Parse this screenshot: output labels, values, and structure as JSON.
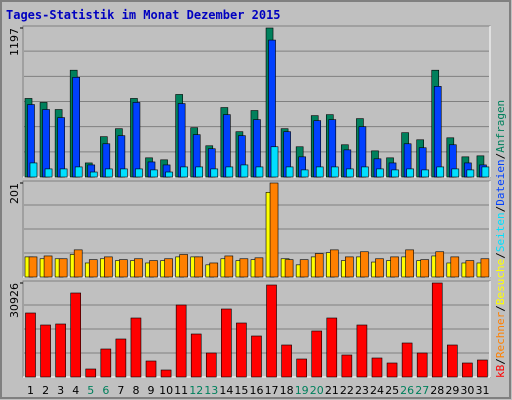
{
  "chart_data": {
    "type": "bar",
    "title": "Tages-Statistik im Monat Dezember 2015",
    "categories": [
      "1",
      "2",
      "3",
      "4",
      "5",
      "6",
      "7",
      "8",
      "9",
      "10",
      "11",
      "12",
      "13",
      "14",
      "15",
      "16",
      "17",
      "18",
      "19",
      "20",
      "21",
      "22",
      "23",
      "24",
      "25",
      "26",
      "27",
      "28",
      "29",
      "30",
      "31"
    ],
    "category_colors": [
      "#000000",
      "#000000",
      "#000000",
      "#000000",
      "#00805c",
      "#00805c",
      "#000000",
      "#000000",
      "#000000",
      "#000000",
      "#000000",
      "#00805c",
      "#00805c",
      "#000000",
      "#000000",
      "#000000",
      "#000000",
      "#000000",
      "#00805c",
      "#00805c",
      "#000000",
      "#000000",
      "#000000",
      "#000000",
      "#000000",
      "#00805c",
      "#00805c",
      "#000000",
      "#000000",
      "#000000",
      "#000000"
    ],
    "legend_separator": "/",
    "panels": [
      {
        "ylim": [
          0,
          1197
        ],
        "yticks": [
          1197
        ],
        "series": [
          {
            "name": "Anfragen",
            "color": "#00805c",
            "values": [
              631,
              599,
              542,
              858,
              113,
              324,
              388,
              631,
              154,
              138,
              663,
              396,
              251,
              558,
              364,
              534,
              1197,
              388,
              243,
              493,
              501,
              259,
              469,
              210,
              154,
              356,
              299,
              858,
              315,
              162,
              170
            ]
          },
          {
            "name": "Dateien",
            "color": "#0040ff",
            "values": [
              582,
              542,
              477,
              801,
              97,
              267,
              332,
              599,
              121,
              97,
              590,
              340,
              227,
              501,
              332,
              461,
              1100,
              364,
              162,
              453,
              461,
              218,
              404,
              146,
              113,
              267,
              235,
              728,
              259,
              113,
              97
            ]
          },
          {
            "name": "Seiten",
            "color": "#00e0ff",
            "values": [
              113,
              65,
              65,
              81,
              40,
              65,
              65,
              65,
              57,
              40,
              81,
              81,
              65,
              81,
              97,
              81,
              243,
              81,
              57,
              81,
              81,
              65,
              81,
              65,
              57,
              65,
              57,
              81,
              65,
              57,
              81
            ]
          }
        ]
      },
      {
        "ylim": [
          0,
          201
        ],
        "yticks": [
          201
        ],
        "series": [
          {
            "name": "Besuche",
            "color": "#ffff00",
            "values": [
              43,
              39,
              39,
              48,
              30,
              39,
              35,
              35,
              30,
              35,
              43,
              43,
              26,
              39,
              35,
              37,
              181,
              39,
              26,
              43,
              52,
              35,
              43,
              32,
              35,
              43,
              35,
              45,
              30,
              30,
              30
            ]
          },
          {
            "name": "Rechner",
            "color": "#ff8000",
            "values": [
              43,
              45,
              39,
              58,
              37,
              43,
              37,
              39,
              35,
              39,
              48,
              43,
              30,
              45,
              39,
              41,
              201,
              37,
              37,
              50,
              58,
              43,
              54,
              39,
              43,
              58,
              37,
              54,
              43,
              35,
              39
            ]
          }
        ]
      },
      {
        "ylim": [
          0,
          30926
        ],
        "yticks": [
          30926
        ],
        "series": [
          {
            "name": "kB",
            "color": "#ff0000",
            "values": [
              21056,
              17108,
              17437,
              27636,
              2632,
              9212,
              12502,
              19411,
              5264,
              2303,
              23688,
              14147,
              7896,
              22372,
              17766,
              13489,
              30268,
              10528,
              5922,
              15134,
              19411,
              7238,
              17108,
              6251,
              4606,
              11186,
              7896,
              30926,
              10528,
              4606,
              5593
            ]
          }
        ]
      }
    ]
  }
}
